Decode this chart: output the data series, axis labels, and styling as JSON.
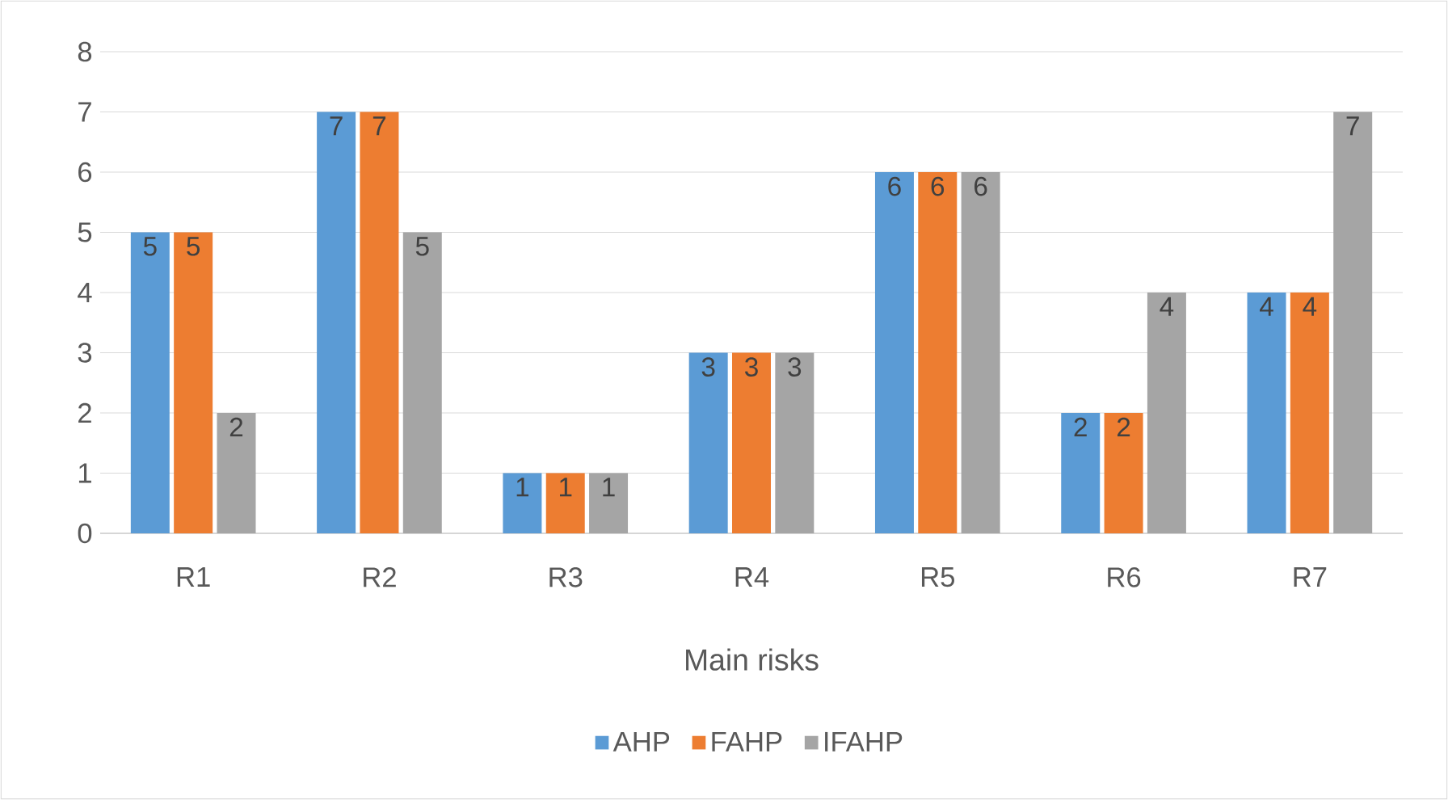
{
  "chart_data": {
    "type": "bar",
    "xlabel": "Main risks",
    "categories": [
      "R1",
      "R2",
      "R3",
      "R4",
      "R5",
      "R6",
      "R7"
    ],
    "series": [
      {
        "name": "AHP",
        "color": "#5b9bd5",
        "values": [
          5,
          7,
          1,
          3,
          6,
          2,
          4
        ]
      },
      {
        "name": "FAHP",
        "color": "#ed7d31",
        "values": [
          5,
          7,
          1,
          3,
          6,
          2,
          4
        ]
      },
      {
        "name": "IFAHP",
        "color": "#a5a5a5",
        "values": [
          2,
          5,
          1,
          3,
          6,
          4,
          7
        ]
      }
    ],
    "ylim": [
      0,
      8
    ],
    "yticks": [
      0,
      1,
      2,
      3,
      4,
      5,
      6,
      7,
      8
    ],
    "grid": "y",
    "legend": "bottom",
    "data_labels": true
  }
}
